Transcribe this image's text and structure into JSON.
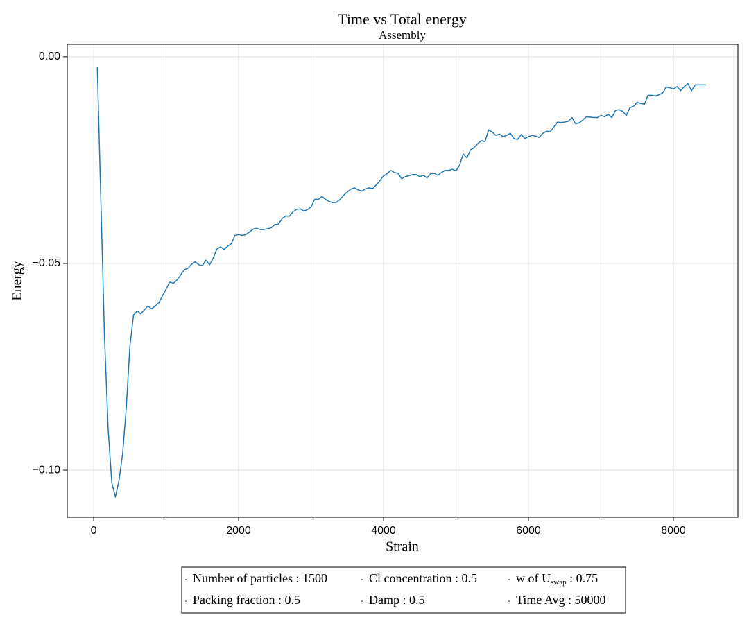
{
  "chart_data": {
    "type": "line",
    "title": "Time vs Total energy",
    "subtitle": "Assembly",
    "x_label": "Strain",
    "y_label": "Energy",
    "color": "#1f77b4",
    "x": [
      50,
      100,
      150,
      200,
      250,
      300,
      350,
      400,
      450,
      500,
      550,
      600,
      650,
      700,
      750,
      800,
      850,
      900,
      950,
      1000,
      1050,
      1100,
      1150,
      1200,
      1250,
      1300,
      1350,
      1400,
      1450,
      1500,
      1550,
      1600,
      1650,
      1700,
      1750,
      1800,
      1850,
      1900,
      1950,
      2000,
      2050,
      2100,
      2150,
      2200,
      2250,
      2300,
      2350,
      2400,
      2450,
      2500,
      2550,
      2600,
      2650,
      2700,
      2750,
      2800,
      2850,
      2900,
      2950,
      3000,
      3050,
      3100,
      3150,
      3200,
      3250,
      3300,
      3350,
      3400,
      3450,
      3500,
      3550,
      3600,
      3650,
      3700,
      3750,
      3800,
      3850,
      3900,
      3950,
      4000,
      4050,
      4100,
      4150,
      4200,
      4250,
      4300,
      4350,
      4400,
      4450,
      4500,
      4550,
      4600,
      4650,
      4700,
      4750,
      4800,
      4850,
      4900,
      4950,
      5000,
      5050,
      5100,
      5150,
      5200,
      5250,
      5300,
      5350,
      5400,
      5450,
      5500,
      5550,
      5600,
      5650,
      5700,
      5750,
      5800,
      5850,
      5900,
      5950,
      6000,
      6050,
      6100,
      6150,
      6200,
      6250,
      6300,
      6350,
      6400,
      6450,
      6500,
      6550,
      6600,
      6650,
      6700,
      6750,
      6800,
      6850,
      6900,
      6950,
      7000,
      7050,
      7100,
      7150,
      7200,
      7250,
      7300,
      7350,
      7400,
      7450,
      7500,
      7550,
      7600,
      7650,
      7700,
      7750,
      7800,
      7850,
      7900,
      7950,
      8000,
      8050,
      8100,
      8150,
      8200,
      8250,
      8300,
      8350,
      8400,
      8450
    ],
    "values": [
      -0.0024,
      -0.035,
      -0.068,
      -0.09,
      -0.103,
      -0.1065,
      -0.1025,
      -0.096,
      -0.085,
      -0.07,
      -0.0625,
      -0.0615,
      -0.0622,
      -0.0612,
      -0.0603,
      -0.061,
      -0.0603,
      -0.0595,
      -0.0578,
      -0.0562,
      -0.0545,
      -0.0548,
      -0.054,
      -0.0528,
      -0.0515,
      -0.0512,
      -0.0502,
      -0.0496,
      -0.0503,
      -0.0505,
      -0.0492,
      -0.0503,
      -0.0487,
      -0.0465,
      -0.046,
      -0.0466,
      -0.0458,
      -0.0452,
      -0.0432,
      -0.043,
      -0.0432,
      -0.043,
      -0.0424,
      -0.0417,
      -0.0415,
      -0.0418,
      -0.0418,
      -0.0416,
      -0.0414,
      -0.0406,
      -0.0405,
      -0.0392,
      -0.0385,
      -0.0386,
      -0.0375,
      -0.0369,
      -0.0368,
      -0.0373,
      -0.037,
      -0.0363,
      -0.0345,
      -0.0345,
      -0.0338,
      -0.0345,
      -0.035,
      -0.0353,
      -0.0352,
      -0.0345,
      -0.0335,
      -0.0327,
      -0.032,
      -0.0317,
      -0.0322,
      -0.0325,
      -0.032,
      -0.0317,
      -0.0319,
      -0.031,
      -0.03,
      -0.0288,
      -0.0283,
      -0.0275,
      -0.028,
      -0.0282,
      -0.0295,
      -0.029,
      -0.0288,
      -0.0285,
      -0.0285,
      -0.029,
      -0.0287,
      -0.0293,
      -0.0283,
      -0.0282,
      -0.0287,
      -0.028,
      -0.0275,
      -0.0275,
      -0.0272,
      -0.0276,
      -0.0262,
      -0.0235,
      -0.0245,
      -0.0225,
      -0.022,
      -0.021,
      -0.0203,
      -0.0205,
      -0.0177,
      -0.0182,
      -0.019,
      -0.0187,
      -0.0193,
      -0.019,
      -0.0185,
      -0.0198,
      -0.02,
      -0.0188,
      -0.0198,
      -0.0193,
      -0.019,
      -0.0192,
      -0.0195,
      -0.0185,
      -0.018,
      -0.0181,
      -0.017,
      -0.0158,
      -0.0159,
      -0.0158,
      -0.0156,
      -0.0147,
      -0.0162,
      -0.016,
      -0.0153,
      -0.0145,
      -0.0146,
      -0.0147,
      -0.0147,
      -0.0142,
      -0.0145,
      -0.0139,
      -0.0147,
      -0.013,
      -0.0128,
      -0.0132,
      -0.0142,
      -0.0123,
      -0.012,
      -0.011,
      -0.0113,
      -0.0115,
      -0.0093,
      -0.0093,
      -0.0095,
      -0.0092,
      -0.0088,
      -0.0073,
      -0.0075,
      -0.0078,
      -0.0072,
      -0.0082,
      -0.0072,
      -0.0065,
      -0.0082,
      -0.0068,
      -0.0068,
      -0.0068,
      -0.0068
    ],
    "xlim": [
      -364,
      8890
    ],
    "ylim": [
      -0.1114,
      0.003
    ],
    "xticks": [
      0,
      2000,
      4000,
      6000,
      8000
    ],
    "xminorticks": [
      1000,
      3000,
      5000,
      7000
    ],
    "yticks": [
      {
        "value": -0.1,
        "label": "−0.10"
      },
      {
        "value": -0.05,
        "label": "−0.05"
      },
      {
        "value": 0,
        "label": "0.00"
      }
    ],
    "grid": true,
    "legend_entries": [
      {
        "text": "Number of particles : 1500"
      },
      {
        "text": "Cl concentration : 0.5"
      },
      {
        "text": "w of U",
        "sub": "swap",
        "tail": " : 0.75"
      },
      {
        "text": "Packing fraction : 0.5"
      },
      {
        "text": "Damp : 0.5"
      },
      {
        "text": "Time Avg : 50000"
      }
    ]
  }
}
